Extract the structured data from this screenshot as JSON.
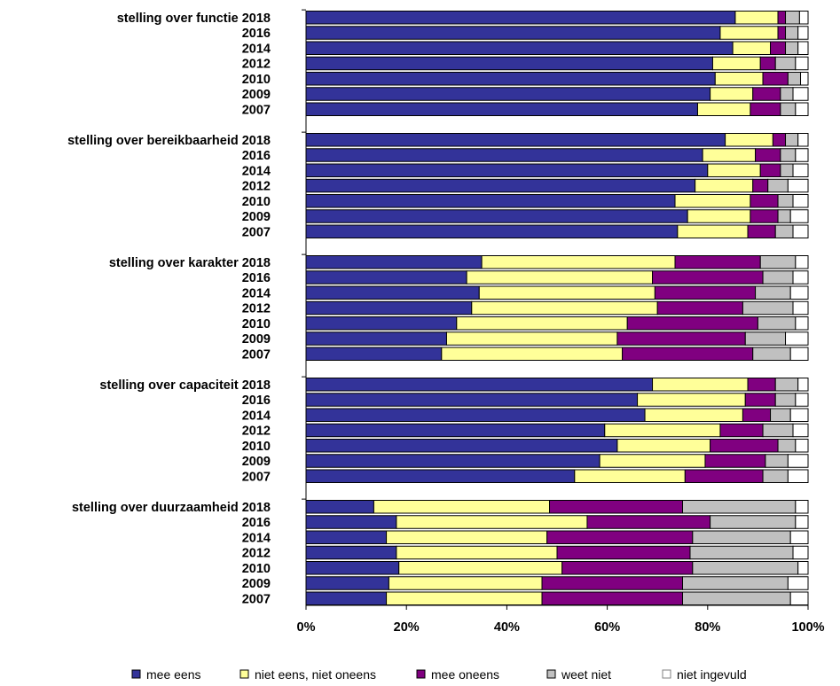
{
  "chart_data": {
    "type": "bar",
    "orientation": "horizontal",
    "stacked": "percent",
    "xlim": [
      0,
      100
    ],
    "x_ticks": [
      "0%",
      "20%",
      "40%",
      "60%",
      "80%",
      "100%"
    ],
    "legend_position": "bottom",
    "series": [
      {
        "name": "mee eens",
        "color": "#333399"
      },
      {
        "name": "niet eens, niet oneens",
        "color": "#FFFF99"
      },
      {
        "name": "mee oneens",
        "color": "#800080"
      },
      {
        "name": "weet niet",
        "color": "#C0C0C0"
      },
      {
        "name": "niet ingevuld",
        "color": "#FFFFFF"
      }
    ],
    "groups": [
      {
        "title": "stelling over functie",
        "rows": [
          {
            "year": "2018",
            "values": [
              85.5,
              8.5,
              1.5,
              2.8,
              1.7
            ]
          },
          {
            "year": "2016",
            "values": [
              82.5,
              11.5,
              1.5,
              2.5,
              2.0
            ]
          },
          {
            "year": "2014",
            "values": [
              85.0,
              7.5,
              3.0,
              2.5,
              2.0
            ]
          },
          {
            "year": "2012",
            "values": [
              81.0,
              9.5,
              3.0,
              4.0,
              2.5
            ]
          },
          {
            "year": "2010",
            "values": [
              81.5,
              9.5,
              5.0,
              2.5,
              1.5
            ]
          },
          {
            "year": "2009",
            "values": [
              80.5,
              8.5,
              5.5,
              2.5,
              3.0
            ]
          },
          {
            "year": "2007",
            "values": [
              78.0,
              10.5,
              6.0,
              3.0,
              2.5
            ]
          }
        ]
      },
      {
        "title": "stelling over bereikbaarheid",
        "rows": [
          {
            "year": "2018",
            "values": [
              83.5,
              9.5,
              2.5,
              2.5,
              2.0
            ]
          },
          {
            "year": "2016",
            "values": [
              79.0,
              10.5,
              5.0,
              3.0,
              2.5
            ]
          },
          {
            "year": "2014",
            "values": [
              80.0,
              10.5,
              4.0,
              2.5,
              3.0
            ]
          },
          {
            "year": "2012",
            "values": [
              77.5,
              11.5,
              3.0,
              4.0,
              4.0
            ]
          },
          {
            "year": "2010",
            "values": [
              73.5,
              15.0,
              5.5,
              3.0,
              3.0
            ]
          },
          {
            "year": "2009",
            "values": [
              76.0,
              12.5,
              5.5,
              2.5,
              3.5
            ]
          },
          {
            "year": "2007",
            "values": [
              74.0,
              14.0,
              5.5,
              3.5,
              3.0
            ]
          }
        ]
      },
      {
        "title": "stelling over karakter",
        "rows": [
          {
            "year": "2018",
            "values": [
              35.0,
              38.5,
              17.0,
              7.0,
              2.5
            ]
          },
          {
            "year": "2016",
            "values": [
              32.0,
              37.0,
              22.0,
              6.0,
              3.0
            ]
          },
          {
            "year": "2014",
            "values": [
              34.5,
              35.0,
              20.0,
              7.0,
              3.5
            ]
          },
          {
            "year": "2012",
            "values": [
              33.0,
              37.0,
              17.0,
              10.0,
              3.0
            ]
          },
          {
            "year": "2010",
            "values": [
              30.0,
              34.0,
              26.0,
              7.5,
              2.5
            ]
          },
          {
            "year": "2009",
            "values": [
              28.0,
              34.0,
              25.5,
              8.0,
              4.5
            ]
          },
          {
            "year": "2007",
            "values": [
              27.0,
              36.0,
              26.0,
              7.5,
              3.5
            ]
          }
        ]
      },
      {
        "title": "stelling over capaciteit",
        "rows": [
          {
            "year": "2018",
            "values": [
              69.0,
              19.0,
              5.5,
              4.5,
              2.0
            ]
          },
          {
            "year": "2016",
            "values": [
              66.0,
              21.5,
              6.0,
              4.0,
              2.5
            ]
          },
          {
            "year": "2014",
            "values": [
              67.5,
              19.5,
              5.5,
              4.0,
              3.5
            ]
          },
          {
            "year": "2012",
            "values": [
              59.5,
              23.0,
              8.5,
              6.0,
              3.0
            ]
          },
          {
            "year": "2010",
            "values": [
              62.0,
              18.5,
              13.5,
              3.5,
              2.5
            ]
          },
          {
            "year": "2009",
            "values": [
              58.5,
              21.0,
              12.0,
              4.5,
              4.0
            ]
          },
          {
            "year": "2007",
            "values": [
              53.5,
              22.0,
              15.5,
              5.0,
              4.0
            ]
          }
        ]
      },
      {
        "title": "stelling over duurzaamheid",
        "rows": [
          {
            "year": "2018",
            "values": [
              13.5,
              35.0,
              26.5,
              22.5,
              2.5
            ]
          },
          {
            "year": "2016",
            "values": [
              18.0,
              38.0,
              24.5,
              17.0,
              2.5
            ]
          },
          {
            "year": "2014",
            "values": [
              16.0,
              32.0,
              29.0,
              19.5,
              3.5
            ]
          },
          {
            "year": "2012",
            "values": [
              18.0,
              32.0,
              26.5,
              20.5,
              3.0
            ]
          },
          {
            "year": "2010",
            "values": [
              18.5,
              32.5,
              26.0,
              21.0,
              2.0
            ]
          },
          {
            "year": "2009",
            "values": [
              16.5,
              30.5,
              28.0,
              21.0,
              4.0
            ]
          },
          {
            "year": "2007",
            "values": [
              16.0,
              31.0,
              28.0,
              21.5,
              3.5
            ]
          }
        ]
      }
    ]
  }
}
